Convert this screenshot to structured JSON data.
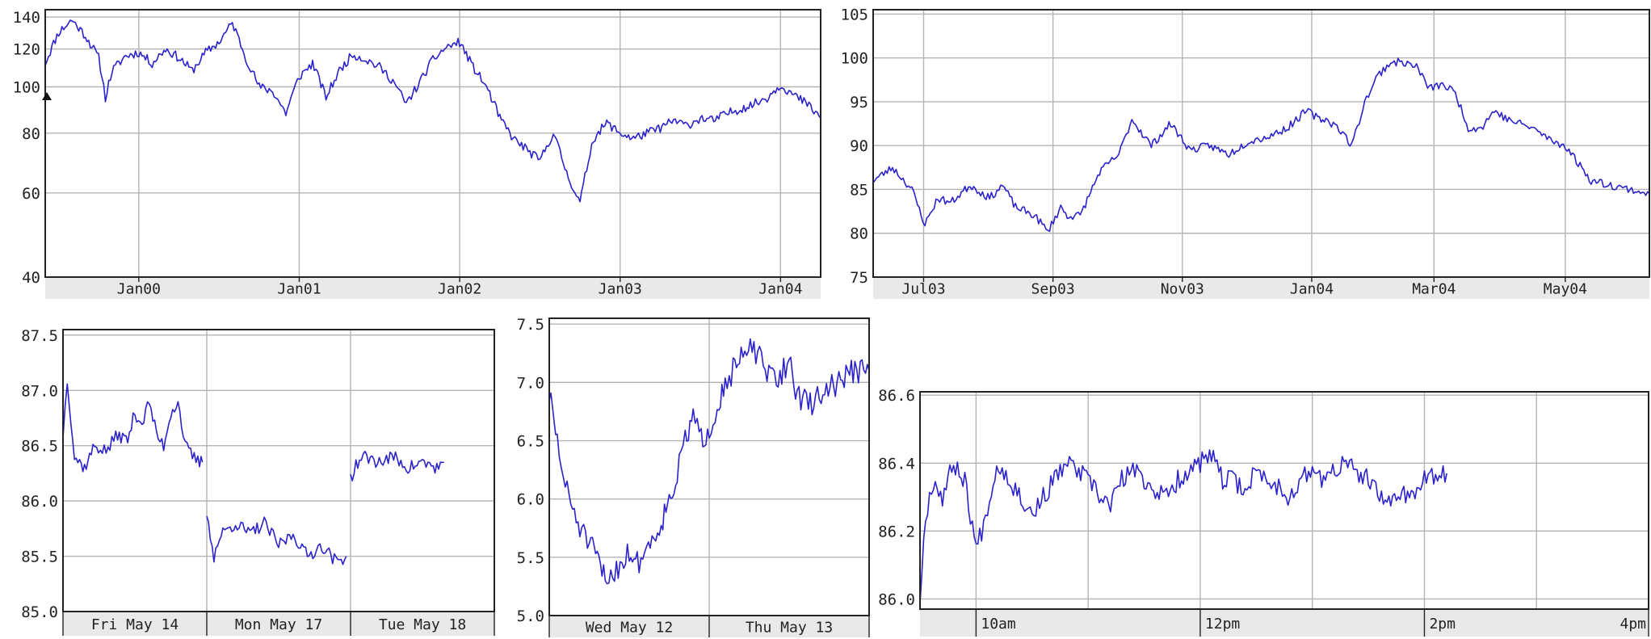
{
  "chart_data": [
    {
      "id": "c1",
      "type": "line",
      "name": "chart-5y",
      "y_scale": "log",
      "ylim": [
        40,
        145
      ],
      "xlim": [
        0,
        58
      ],
      "y_ticks": [
        40,
        60,
        80,
        100,
        120,
        140
      ],
      "y_tick_labels": [
        "40",
        "60",
        "80",
        "100",
        "120",
        "140"
      ],
      "x_ticks": [
        7,
        19,
        31,
        43,
        55
      ],
      "x_tick_labels": [
        "Jan00",
        "Jan01",
        "Jan02",
        "Jan03",
        "Jan04"
      ],
      "seed": 11,
      "noise": 0.022,
      "series": [
        {
          "color": "#2b22cc",
          "x": [
            0,
            1,
            2,
            3,
            4,
            4.5,
            5,
            6,
            7,
            8,
            9,
            10,
            11,
            12,
            13,
            14,
            15,
            16,
            17,
            18,
            19,
            20,
            21,
            22,
            23,
            24,
            25,
            26,
            27,
            28,
            29,
            30,
            31,
            32,
            33,
            34,
            35,
            36,
            37,
            38,
            39,
            40,
            41,
            42,
            43,
            44,
            45,
            46,
            47,
            48,
            49,
            50,
            51,
            52,
            53,
            54,
            55,
            56,
            57,
            58
          ],
          "y": [
            112,
            130,
            138,
            128,
            115,
            95,
            108,
            116,
            118,
            112,
            120,
            115,
            108,
            118,
            124,
            136,
            115,
            100,
            98,
            88,
            105,
            112,
            95,
            108,
            117,
            114,
            110,
            103,
            92,
            102,
            114,
            121,
            124,
            110,
            100,
            86,
            78,
            74,
            70,
            80,
            66,
            57,
            78,
            84,
            80,
            78,
            80,
            82,
            85,
            83,
            86,
            85,
            88,
            90,
            92,
            95,
            101,
            96,
            92,
            86
          ]
        }
      ]
    },
    {
      "id": "c2",
      "type": "line",
      "name": "chart-1y",
      "ylim": [
        75,
        105.5
      ],
      "xlim": [
        0,
        12
      ],
      "y_ticks": [
        75,
        80,
        85,
        90,
        95,
        100,
        105
      ],
      "y_tick_labels": [
        "75",
        "80",
        "85",
        "90",
        "95",
        "100",
        "105"
      ],
      "x_ticks": [
        0.78,
        2.78,
        4.78,
        6.78,
        8.67,
        10.7
      ],
      "x_tick_labels": [
        "Jul03",
        "Sep03",
        "Nov03",
        "Jan04",
        "Mar04",
        "May04"
      ],
      "seed": 23,
      "noise": 0.45,
      "series": [
        {
          "color": "#2b22cc",
          "x": [
            0,
            0.3,
            0.6,
            0.8,
            1.0,
            1.2,
            1.5,
            1.8,
            2.0,
            2.2,
            2.5,
            2.7,
            2.9,
            3.0,
            3.2,
            3.5,
            3.8,
            4.0,
            4.3,
            4.6,
            4.9,
            5.2,
            5.5,
            5.8,
            6.1,
            6.4,
            6.7,
            6.9,
            7.0,
            7.2,
            7.4,
            7.6,
            7.8,
            8.0,
            8.2,
            8.4,
            8.6,
            8.8,
            9.0,
            9.2,
            9.4,
            9.6,
            9.8,
            10.0,
            10.2,
            10.5,
            10.7,
            10.9,
            11.1,
            11.4,
            11.7,
            12.0
          ],
          "y": [
            86,
            87.5,
            85,
            81,
            84,
            83.5,
            85.5,
            84,
            85.5,
            83,
            82,
            80.2,
            83,
            82,
            82,
            87,
            89,
            93,
            90,
            92.5,
            89.5,
            90,
            89,
            90.5,
            91,
            92,
            94,
            93,
            93,
            92,
            90,
            95,
            98,
            99.5,
            99.5,
            99,
            96.5,
            97,
            96,
            92,
            92,
            94,
            93,
            92.5,
            92,
            90.5,
            90,
            88,
            86,
            85.5,
            85,
            84.5
          ]
        }
      ]
    },
    {
      "id": "c3",
      "type": "line",
      "name": "chart-3d",
      "ylim": [
        85.0,
        87.55
      ],
      "xlim": [
        0,
        3
      ],
      "y_ticks": [
        85.0,
        85.5,
        86.0,
        86.5,
        87.0,
        87.5
      ],
      "y_tick_labels": [
        "85.0",
        "85.5",
        "86.0",
        "86.5",
        "87.0",
        "87.5"
      ],
      "x_ticks": [
        0,
        1,
        2,
        3
      ],
      "x_tick_labels": [
        "Fri May 14",
        "Mon May 17",
        "Tue May 18"
      ],
      "seed": 37,
      "noise": 0.06,
      "series": [
        {
          "color": "#2b22cc",
          "x": [
            0,
            0.03,
            0.08,
            0.15,
            0.22,
            0.3,
            0.38,
            0.45,
            0.5,
            0.55,
            0.6,
            0.65,
            0.7,
            0.75,
            0.8,
            0.85,
            0.9,
            0.95,
            0.97
          ],
          "y": [
            86.6,
            87.1,
            86.4,
            86.3,
            86.5,
            86.45,
            86.6,
            86.55,
            86.8,
            86.7,
            86.9,
            86.6,
            86.5,
            86.8,
            86.9,
            86.5,
            86.4,
            86.35,
            86.35
          ]
        },
        {
          "color": "#2b22cc",
          "x": [
            1.0,
            1.05,
            1.1,
            1.2,
            1.3,
            1.4,
            1.5,
            1.6,
            1.7,
            1.8,
            1.9,
            1.97
          ],
          "y": [
            85.9,
            85.5,
            85.7,
            85.8,
            85.7,
            85.8,
            85.6,
            85.7,
            85.5,
            85.6,
            85.45,
            85.5
          ]
        },
        {
          "color": "#2b22cc",
          "x": [
            2.0,
            2.05,
            2.1,
            2.2,
            2.3,
            2.4,
            2.5,
            2.6,
            2.65
          ],
          "y": [
            86.2,
            86.35,
            86.4,
            86.35,
            86.4,
            86.3,
            86.35,
            86.3,
            86.35
          ]
        }
      ]
    },
    {
      "id": "c4",
      "type": "line",
      "name": "chart-2d",
      "ylim": [
        5.0,
        7.55
      ],
      "xlim": [
        0,
        2
      ],
      "y_ticks": [
        5.0,
        5.5,
        6.0,
        6.5,
        7.0,
        7.5
      ],
      "y_tick_labels": [
        "5.0",
        "5.5",
        "6.0",
        "6.5",
        "7.0",
        "7.5"
      ],
      "x_ticks": [
        0,
        1,
        2
      ],
      "x_tick_labels": [
        "Wed May 12",
        "Thu May 13"
      ],
      "seed": 51,
      "noise": 0.11,
      "series": [
        {
          "color": "#2b22cc",
          "x": [
            0,
            0.05,
            0.1,
            0.18,
            0.25,
            0.3,
            0.35,
            0.42,
            0.5,
            0.55,
            0.62,
            0.7,
            0.75,
            0.8,
            0.85,
            0.9,
            0.95,
            1.0,
            1.05,
            1.1,
            1.15,
            1.2,
            1.28,
            1.35,
            1.42,
            1.5,
            1.55,
            1.62,
            1.7,
            1.8,
            1.9,
            2.0
          ],
          "y": [
            6.9,
            6.5,
            6.1,
            5.8,
            5.6,
            5.5,
            5.3,
            5.4,
            5.55,
            5.45,
            5.6,
            5.8,
            6.0,
            6.2,
            6.5,
            6.7,
            6.5,
            6.6,
            6.8,
            7.0,
            7.1,
            7.2,
            7.3,
            7.1,
            7.0,
            7.2,
            6.9,
            6.8,
            6.9,
            7.0,
            7.1,
            7.1
          ]
        }
      ]
    },
    {
      "id": "c5",
      "type": "line",
      "name": "chart-1d",
      "ylim": [
        85.97,
        86.61
      ],
      "xlim": [
        9.5,
        16.0
      ],
      "y_ticks": [
        86.0,
        86.2,
        86.4,
        86.6
      ],
      "y_tick_labels": [
        "86.0",
        "86.2",
        "86.4",
        "86.6"
      ],
      "x_ticks": [
        10,
        11,
        12,
        13,
        14,
        15,
        16
      ],
      "x_tick_major": [
        10,
        12,
        14,
        16
      ],
      "x_tick_labels": [
        "10am",
        "12pm",
        "2pm",
        "4pm"
      ],
      "seed": 67,
      "noise": 0.03,
      "series": [
        {
          "color": "#2b22cc",
          "x": [
            9.5,
            9.55,
            9.62,
            9.7,
            9.8,
            9.9,
            10.0,
            10.05,
            10.12,
            10.2,
            10.3,
            10.4,
            10.5,
            10.6,
            10.7,
            10.8,
            10.9,
            11.0,
            11.1,
            11.2,
            11.3,
            11.4,
            11.5,
            11.6,
            11.7,
            11.8,
            11.9,
            12.0,
            12.1,
            12.2,
            12.3,
            12.4,
            12.5,
            12.6,
            12.7,
            12.8,
            12.9,
            13.0,
            13.1,
            13.2,
            13.3,
            13.4,
            13.5,
            13.6,
            13.7,
            13.8,
            13.9,
            14.0,
            14.1,
            14.2
          ],
          "y": [
            86.0,
            86.25,
            86.35,
            86.3,
            86.4,
            86.35,
            86.15,
            86.2,
            86.3,
            86.4,
            86.35,
            86.3,
            86.25,
            86.3,
            86.35,
            86.4,
            86.38,
            86.35,
            86.3,
            86.28,
            86.35,
            86.38,
            86.35,
            86.32,
            86.3,
            86.35,
            86.38,
            86.4,
            86.42,
            86.35,
            86.35,
            86.32,
            86.38,
            86.35,
            86.33,
            86.3,
            86.35,
            86.38,
            86.35,
            86.38,
            86.4,
            86.37,
            86.35,
            86.3,
            86.28,
            86.32,
            86.3,
            86.35,
            86.36,
            86.37
          ]
        }
      ]
    }
  ]
}
